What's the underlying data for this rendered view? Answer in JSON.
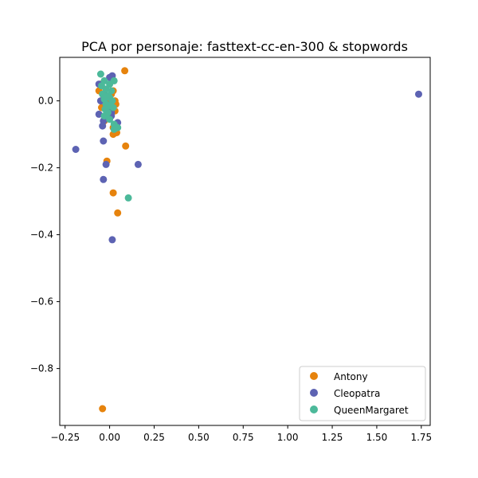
{
  "chart_data": {
    "type": "scatter",
    "title": "PCA por personaje: fasttext-cc-en-300 & stopwords",
    "xlabel": "",
    "ylabel": "",
    "xlim": [
      -0.28,
      1.8
    ],
    "ylim": [
      -0.97,
      0.13
    ],
    "x_ticks": [
      -0.25,
      0.0,
      0.25,
      0.5,
      0.75,
      1.0,
      1.25,
      1.5,
      1.75
    ],
    "x_tick_labels": [
      "−0.25",
      "0.00",
      "0.25",
      "0.50",
      "0.75",
      "1.00",
      "1.25",
      "1.50",
      "1.75"
    ],
    "y_ticks": [
      0.0,
      -0.2,
      -0.4,
      -0.6,
      -0.8
    ],
    "y_tick_labels": [
      "0.0",
      "−0.2",
      "−0.4",
      "−0.6",
      "−0.8"
    ],
    "grid": false,
    "legend_position": "lower-right",
    "series": [
      {
        "name": "Antony",
        "color": "#e6830d",
        "points": [
          [
            0.085,
            0.09
          ],
          [
            -0.05,
            0.05
          ],
          [
            -0.06,
            0.03
          ],
          [
            -0.04,
            0.02
          ],
          [
            -0.02,
            0.01
          ],
          [
            0.0,
            0.0
          ],
          [
            0.01,
            0.02
          ],
          [
            0.02,
            0.03
          ],
          [
            0.03,
            0.0
          ],
          [
            0.035,
            -0.01
          ],
          [
            0.03,
            -0.03
          ],
          [
            -0.045,
            -0.02
          ],
          [
            -0.03,
            -0.06
          ],
          [
            0.02,
            -0.08
          ],
          [
            0.02,
            -0.1
          ],
          [
            0.04,
            -0.095
          ],
          [
            0.09,
            -0.135
          ],
          [
            -0.015,
            -0.18
          ],
          [
            0.02,
            -0.275
          ],
          [
            0.045,
            -0.335
          ],
          [
            -0.04,
            -0.92
          ]
        ]
      },
      {
        "name": "Cleopatra",
        "color": "#5d63b3",
        "points": [
          [
            1.735,
            0.02
          ],
          [
            0.015,
            0.075
          ],
          [
            0.0,
            0.07
          ],
          [
            -0.06,
            0.05
          ],
          [
            -0.03,
            0.02
          ],
          [
            -0.05,
            0.0
          ],
          [
            -0.02,
            -0.01
          ],
          [
            0.0,
            -0.02
          ],
          [
            0.01,
            -0.035
          ],
          [
            -0.06,
            -0.04
          ],
          [
            -0.035,
            -0.06
          ],
          [
            -0.04,
            -0.075
          ],
          [
            0.045,
            -0.065
          ],
          [
            0.01,
            -0.045
          ],
          [
            -0.035,
            -0.12
          ],
          [
            -0.19,
            -0.145
          ],
          [
            -0.02,
            -0.19
          ],
          [
            0.16,
            -0.19
          ],
          [
            -0.035,
            -0.235
          ],
          [
            0.015,
            -0.415
          ]
        ]
      },
      {
        "name": "QueenMargaret",
        "color": "#4cb99a",
        "points": [
          [
            -0.05,
            0.08
          ],
          [
            -0.03,
            0.06
          ],
          [
            0.025,
            0.06
          ],
          [
            -0.045,
            0.045
          ],
          [
            0.0,
            0.05
          ],
          [
            -0.02,
            0.035
          ],
          [
            0.01,
            0.03
          ],
          [
            -0.04,
            0.02
          ],
          [
            -0.01,
            0.015
          ],
          [
            0.0,
            0.01
          ],
          [
            -0.03,
            0.005
          ],
          [
            0.015,
            0.0
          ],
          [
            -0.02,
            -0.01
          ],
          [
            0.005,
            -0.015
          ],
          [
            -0.025,
            -0.025
          ],
          [
            0.02,
            -0.02
          ],
          [
            -0.01,
            -0.035
          ],
          [
            -0.03,
            -0.045
          ],
          [
            0.0,
            -0.055
          ],
          [
            0.025,
            -0.07
          ],
          [
            0.045,
            -0.08
          ],
          [
            0.025,
            -0.085
          ],
          [
            0.105,
            -0.29
          ]
        ]
      }
    ]
  }
}
